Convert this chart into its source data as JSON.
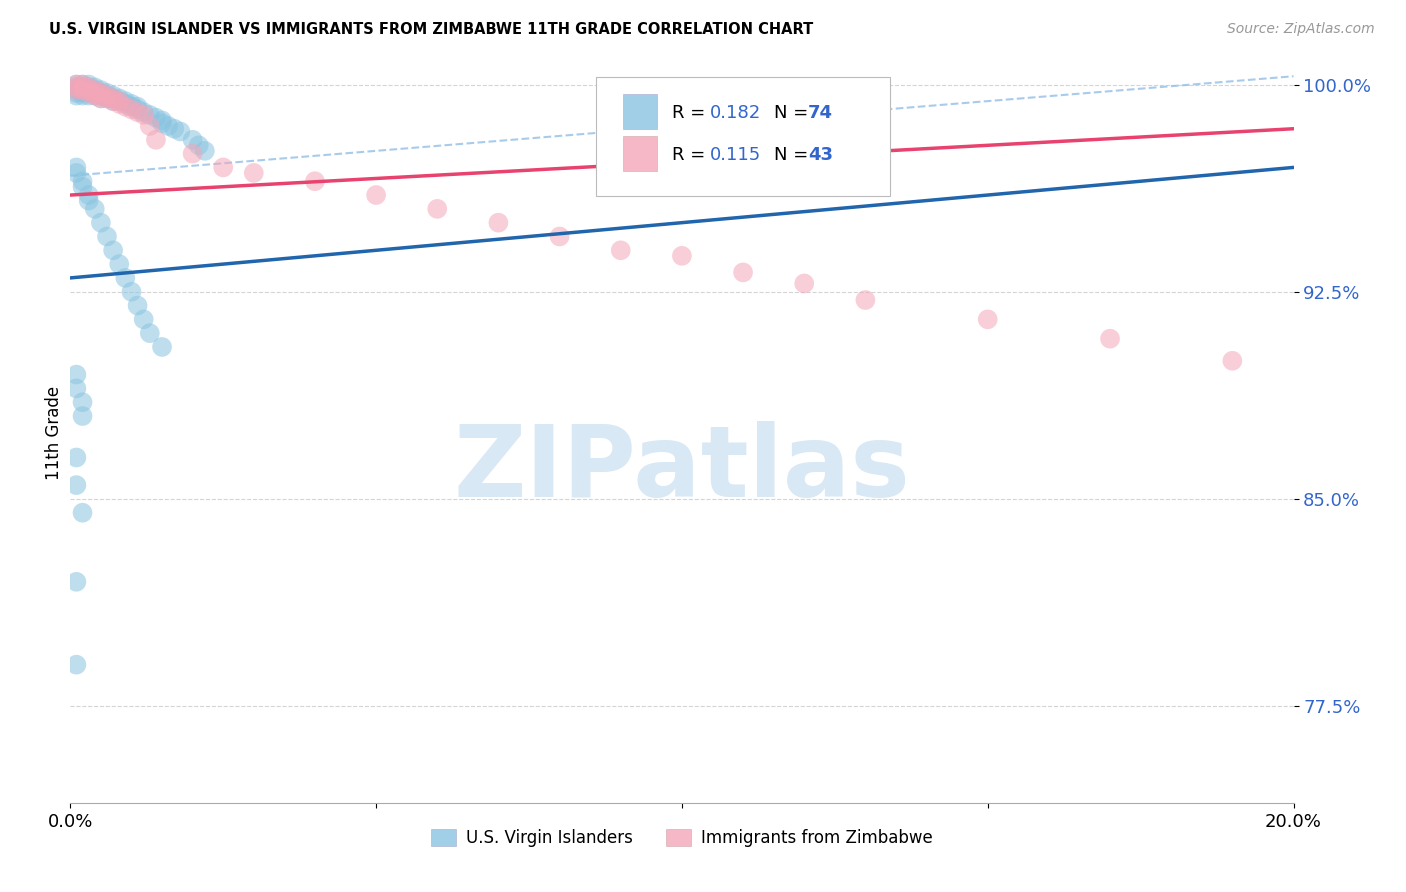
{
  "title": "U.S. VIRGIN ISLANDER VS IMMIGRANTS FROM ZIMBABWE 11TH GRADE CORRELATION CHART",
  "source": "Source: ZipAtlas.com",
  "ylabel": "11th Grade",
  "xmin": 0.0,
  "xmax": 0.2,
  "ymin": 0.74,
  "ymax": 1.008,
  "yticks": [
    0.775,
    0.85,
    0.925,
    1.0
  ],
  "ytick_labels": [
    "77.5%",
    "85.0%",
    "92.5%",
    "100.0%"
  ],
  "xtick_positions": [
    0.0,
    0.05,
    0.1,
    0.15,
    0.2
  ],
  "xtick_labels": [
    "0.0%",
    "",
    "",
    "",
    "20.0%"
  ],
  "color_blue": "#89c4e1",
  "color_pink": "#f4a6b8",
  "color_blue_line": "#2166ac",
  "color_pink_line": "#e8436e",
  "color_dashed": "#92bfe8",
  "label_blue": "U.S. Virgin Islanders",
  "label_pink": "Immigrants from Zimbabwe",
  "blue_line_x0": 0.0,
  "blue_line_x1": 0.2,
  "blue_line_y0": 0.93,
  "blue_line_y1": 0.97,
  "pink_line_x0": 0.0,
  "pink_line_x1": 0.2,
  "pink_line_y0": 0.96,
  "pink_line_y1": 0.984,
  "dashed_line_x0": 0.0,
  "dashed_line_x1": 0.2,
  "dashed_line_y0": 0.967,
  "dashed_line_y1": 1.003,
  "background_color": "#ffffff",
  "grid_color": "#d0d0d0",
  "watermark_text": "ZIPatlas",
  "watermark_color": "#d8e8f5",
  "legend_r1": "0.182",
  "legend_n1": "74",
  "legend_r2": "0.115",
  "legend_n2": "43",
  "blue_x": [
    0.001,
    0.001,
    0.001,
    0.001,
    0.001,
    0.002,
    0.002,
    0.002,
    0.002,
    0.002,
    0.003,
    0.003,
    0.003,
    0.003,
    0.003,
    0.004,
    0.004,
    0.004,
    0.004,
    0.005,
    0.005,
    0.005,
    0.005,
    0.006,
    0.006,
    0.006,
    0.007,
    0.007,
    0.007,
    0.008,
    0.008,
    0.009,
    0.009,
    0.01,
    0.01,
    0.011,
    0.011,
    0.012,
    0.013,
    0.014,
    0.015,
    0.015,
    0.016,
    0.017,
    0.018,
    0.02,
    0.021,
    0.022,
    0.001,
    0.001,
    0.002,
    0.002,
    0.003,
    0.003,
    0.004,
    0.005,
    0.006,
    0.007,
    0.008,
    0.009,
    0.01,
    0.011,
    0.012,
    0.013,
    0.015,
    0.001,
    0.001,
    0.002,
    0.002,
    0.001,
    0.001,
    0.002,
    0.001,
    0.001
  ],
  "blue_y": [
    1.0,
    0.999,
    0.998,
    0.997,
    0.996,
    1.0,
    0.999,
    0.998,
    0.997,
    0.996,
    1.0,
    0.999,
    0.998,
    0.997,
    0.996,
    0.999,
    0.998,
    0.997,
    0.996,
    0.998,
    0.997,
    0.996,
    0.995,
    0.997,
    0.996,
    0.995,
    0.996,
    0.995,
    0.994,
    0.995,
    0.994,
    0.994,
    0.993,
    0.993,
    0.992,
    0.992,
    0.991,
    0.99,
    0.989,
    0.988,
    0.987,
    0.986,
    0.985,
    0.984,
    0.983,
    0.98,
    0.978,
    0.976,
    0.97,
    0.968,
    0.965,
    0.963,
    0.96,
    0.958,
    0.955,
    0.95,
    0.945,
    0.94,
    0.935,
    0.93,
    0.925,
    0.92,
    0.915,
    0.91,
    0.905,
    0.895,
    0.89,
    0.885,
    0.88,
    0.865,
    0.855,
    0.845,
    0.82,
    0.79
  ],
  "pink_x": [
    0.001,
    0.001,
    0.001,
    0.002,
    0.002,
    0.002,
    0.003,
    0.003,
    0.003,
    0.004,
    0.004,
    0.004,
    0.005,
    0.005,
    0.005,
    0.006,
    0.006,
    0.007,
    0.007,
    0.008,
    0.008,
    0.009,
    0.01,
    0.011,
    0.012,
    0.013,
    0.014,
    0.02,
    0.025,
    0.03,
    0.04,
    0.05,
    0.06,
    0.07,
    0.08,
    0.09,
    0.1,
    0.11,
    0.12,
    0.13,
    0.15,
    0.17,
    0.19
  ],
  "pink_y": [
    1.0,
    0.999,
    0.998,
    1.0,
    0.999,
    0.998,
    0.999,
    0.998,
    0.997,
    0.998,
    0.997,
    0.996,
    0.997,
    0.996,
    0.995,
    0.996,
    0.995,
    0.995,
    0.994,
    0.994,
    0.993,
    0.992,
    0.991,
    0.99,
    0.989,
    0.985,
    0.98,
    0.975,
    0.97,
    0.968,
    0.965,
    0.96,
    0.955,
    0.95,
    0.945,
    0.94,
    0.938,
    0.932,
    0.928,
    0.922,
    0.915,
    0.908,
    0.9
  ]
}
